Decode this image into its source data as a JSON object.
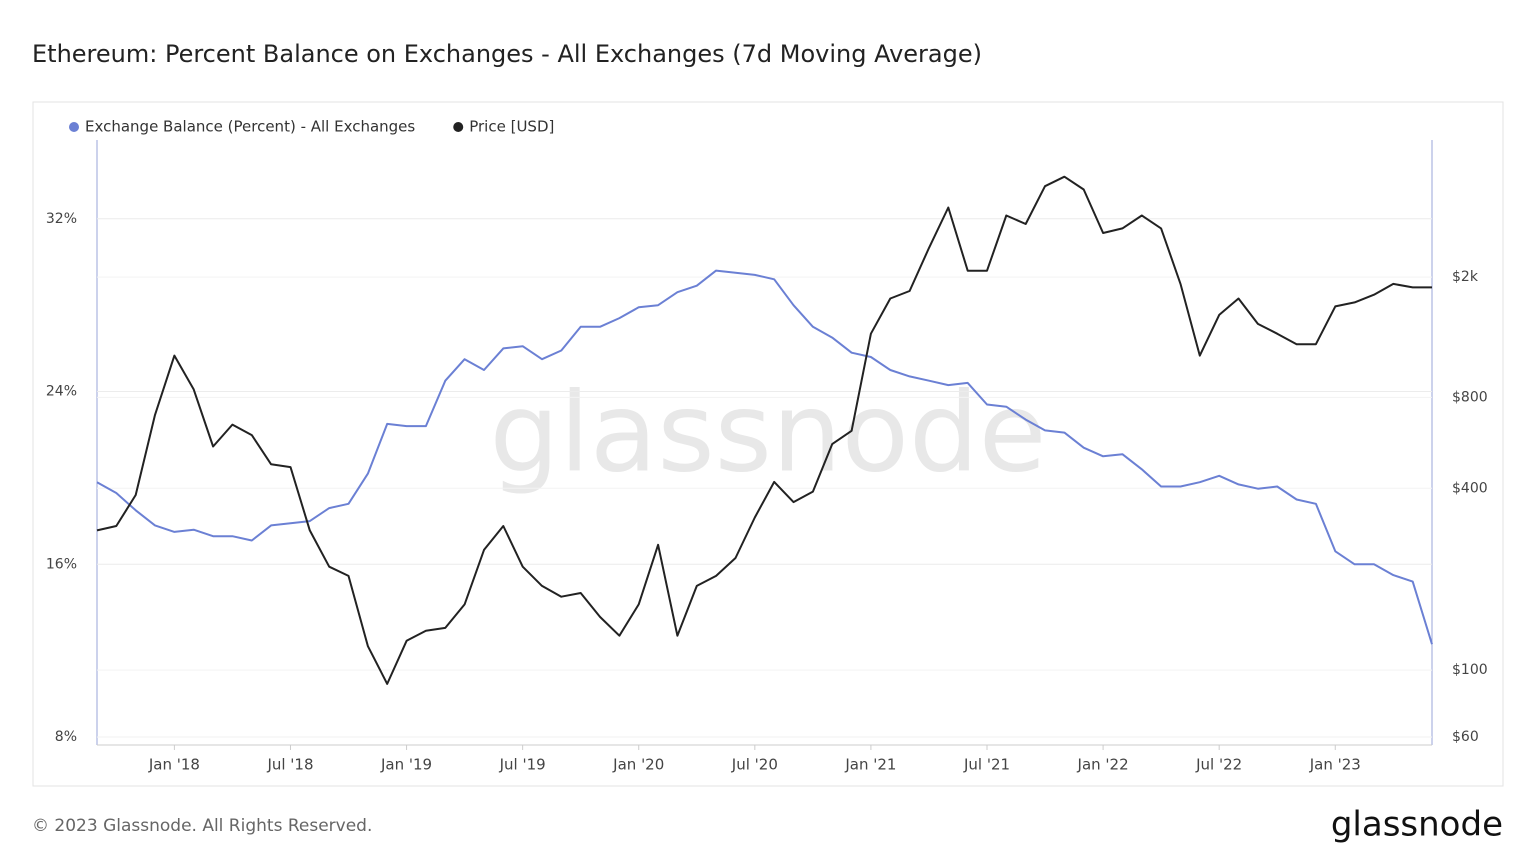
{
  "chart_data": {
    "type": "line",
    "title": "Ethereum: Percent Balance on Exchanges - All Exchanges (7d Moving Average)",
    "watermark": "glassnode",
    "footer": "© 2023 Glassnode. All Rights Reserved.",
    "logo": "glassnode",
    "x": [
      "2017-09",
      "2017-10",
      "2017-11",
      "2017-12",
      "2018-01",
      "2018-02",
      "2018-03",
      "2018-04",
      "2018-05",
      "2018-06",
      "2018-07",
      "2018-08",
      "2018-09",
      "2018-10",
      "2018-11",
      "2018-12",
      "2019-01",
      "2019-02",
      "2019-03",
      "2019-04",
      "2019-05",
      "2019-06",
      "2019-07",
      "2019-08",
      "2019-09",
      "2019-10",
      "2019-11",
      "2019-12",
      "2020-01",
      "2020-02",
      "2020-03",
      "2020-04",
      "2020-05",
      "2020-06",
      "2020-07",
      "2020-08",
      "2020-09",
      "2020-10",
      "2020-11",
      "2020-12",
      "2021-01",
      "2021-02",
      "2021-03",
      "2021-04",
      "2021-05",
      "2021-06",
      "2021-07",
      "2021-08",
      "2021-09",
      "2021-10",
      "2021-11",
      "2021-12",
      "2022-01",
      "2022-02",
      "2022-03",
      "2022-04",
      "2022-05",
      "2022-06",
      "2022-07",
      "2022-08",
      "2022-09",
      "2022-10",
      "2022-11",
      "2022-12",
      "2023-01",
      "2023-02",
      "2023-03",
      "2023-04",
      "2023-05",
      "2023-06"
    ],
    "xlim": [
      "2017-09",
      "2023-06"
    ],
    "xticks": [
      {
        "value": "2018-01",
        "label": "Jan '18"
      },
      {
        "value": "2018-07",
        "label": "Jul '18"
      },
      {
        "value": "2019-01",
        "label": "Jan '19"
      },
      {
        "value": "2019-07",
        "label": "Jul '19"
      },
      {
        "value": "2020-01",
        "label": "Jan '20"
      },
      {
        "value": "2020-07",
        "label": "Jul '20"
      },
      {
        "value": "2021-01",
        "label": "Jan '21"
      },
      {
        "value": "2021-07",
        "label": "Jul '21"
      },
      {
        "value": "2022-01",
        "label": "Jan '22"
      },
      {
        "value": "2022-07",
        "label": "Jul '22"
      },
      {
        "value": "2023-01",
        "label": "Jan '23"
      }
    ],
    "ylim": [
      7.63,
      35.65
    ],
    "yticks": [
      {
        "value": 8,
        "label": "8%"
      },
      {
        "value": 16,
        "label": "16%"
      },
      {
        "value": 24,
        "label": "24%"
      },
      {
        "value": 32,
        "label": "32%"
      }
    ],
    "y2lim": [
      56.5,
      5690
    ],
    "y2scale": "log",
    "y2ticks": [
      {
        "value": 60,
        "label": "$60"
      },
      {
        "value": 100,
        "label": "$100"
      },
      {
        "value": 400,
        "label": "$400"
      },
      {
        "value": 800,
        "label": "$800"
      },
      {
        "value": 2000,
        "label": "$2k"
      }
    ],
    "grid": true,
    "legend": "top-left",
    "series": [
      {
        "name": "Exchange Balance (Percent) - All Exchanges",
        "color": "#6b80d4",
        "axis": "y",
        "values": [
          19.8,
          19.3,
          18.5,
          17.8,
          17.5,
          17.6,
          17.3,
          17.3,
          17.1,
          17.8,
          17.9,
          18.0,
          18.6,
          18.8,
          20.2,
          22.5,
          22.4,
          22.4,
          24.5,
          25.5,
          25.0,
          26.0,
          26.1,
          25.5,
          25.9,
          27.0,
          27.0,
          27.4,
          27.9,
          28.0,
          28.6,
          28.9,
          29.6,
          29.5,
          29.4,
          29.2,
          28.0,
          27.0,
          26.5,
          25.8,
          25.6,
          25.0,
          24.7,
          24.5,
          24.3,
          24.4,
          23.4,
          23.3,
          22.7,
          22.2,
          22.1,
          21.4,
          21.0,
          21.1,
          20.4,
          19.6,
          19.6,
          19.8,
          20.1,
          19.7,
          19.5,
          19.6,
          19.0,
          18.8,
          16.6,
          16.0,
          16.0,
          15.5,
          15.2,
          12.3
        ]
      },
      {
        "name": "Price [USD]",
        "color": "#222222",
        "axis": "y2",
        "values": [
          290,
          300,
          380,
          700,
          1100,
          850,
          550,
          650,
          600,
          480,
          470,
          290,
          220,
          205,
          120,
          90,
          125,
          135,
          138,
          165,
          250,
          300,
          220,
          190,
          175,
          180,
          150,
          130,
          165,
          260,
          130,
          190,
          205,
          235,
          320,
          420,
          360,
          390,
          560,
          620,
          1300,
          1700,
          1800,
          2500,
          3400,
          2100,
          2100,
          3200,
          3000,
          4000,
          4300,
          3900,
          2800,
          2900,
          3200,
          2900,
          1900,
          1100,
          1500,
          1700,
          1400,
          1300,
          1200,
          1200,
          1600,
          1650,
          1750,
          1900,
          1850,
          1850
        ]
      }
    ]
  }
}
